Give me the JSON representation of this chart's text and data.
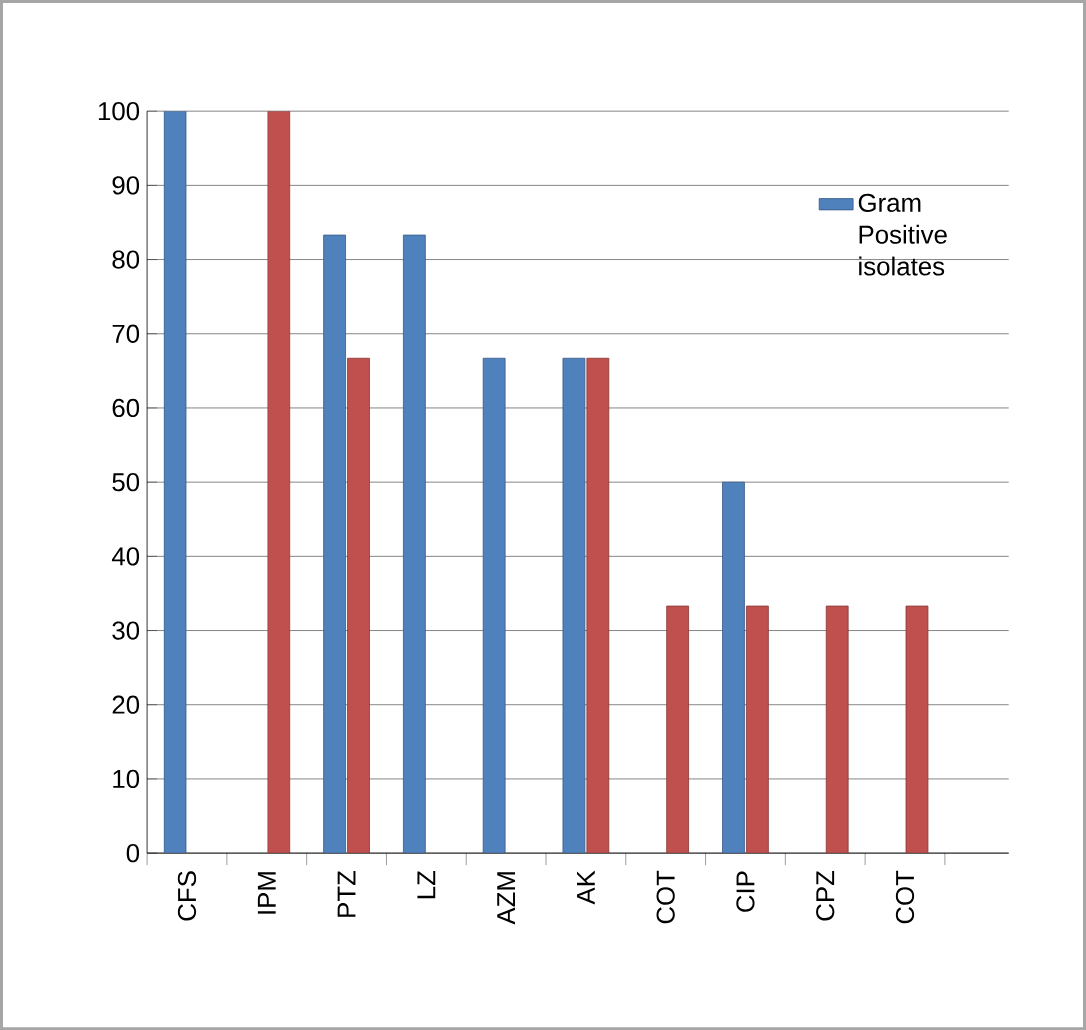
{
  "chart_data": {
    "type": "bar",
    "categories": [
      "CFS",
      "IPM",
      "PTZ",
      "LZ",
      "AZM",
      "AK",
      "COT",
      "CIP",
      "CPZ",
      "COT"
    ],
    "series": [
      {
        "name": "Gram Positive isolates",
        "color": "#4f81bd",
        "values": [
          100,
          null,
          83.3,
          83.3,
          66.7,
          66.7,
          null,
          50,
          null,
          null
        ]
      },
      {
        "color": "#c0504d",
        "values": [
          null,
          100,
          66.7,
          null,
          null,
          66.7,
          33.3,
          33.3,
          33.3,
          33.3
        ]
      }
    ],
    "ylim": [
      0,
      100
    ],
    "yticks": [
      0,
      10,
      20,
      30,
      40,
      50,
      60,
      70,
      80,
      90,
      100
    ],
    "grid": "y",
    "legend": "top right"
  }
}
